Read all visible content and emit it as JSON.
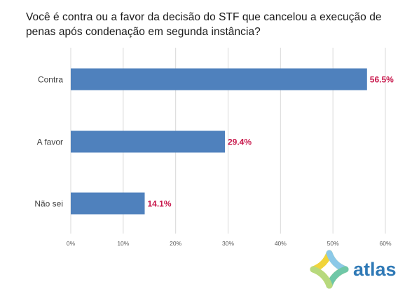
{
  "chart_data": {
    "type": "bar",
    "orientation": "horizontal",
    "title": "Você é contra ou a favor da decisão do STF que cancelou a execução de penas após condenação em segunda instância?",
    "categories": [
      "Contra",
      "A favor",
      "Não sei"
    ],
    "values": [
      56.5,
      29.4,
      14.1
    ],
    "value_labels": [
      "56.5%",
      "29.4%",
      "14.1%"
    ],
    "xlim": [
      0,
      60
    ],
    "x_ticks": [
      0,
      10,
      20,
      30,
      40,
      50,
      60
    ],
    "x_tick_labels": [
      "0%",
      "10%",
      "20%",
      "30%",
      "40%",
      "50%",
      "60%"
    ],
    "grid": true,
    "colors": {
      "bar": "#4f81bd",
      "value_label": "#c8174b",
      "grid": "#d9d9d9"
    }
  },
  "logo": {
    "text": "atlas",
    "text_color": "#2f79b6"
  }
}
